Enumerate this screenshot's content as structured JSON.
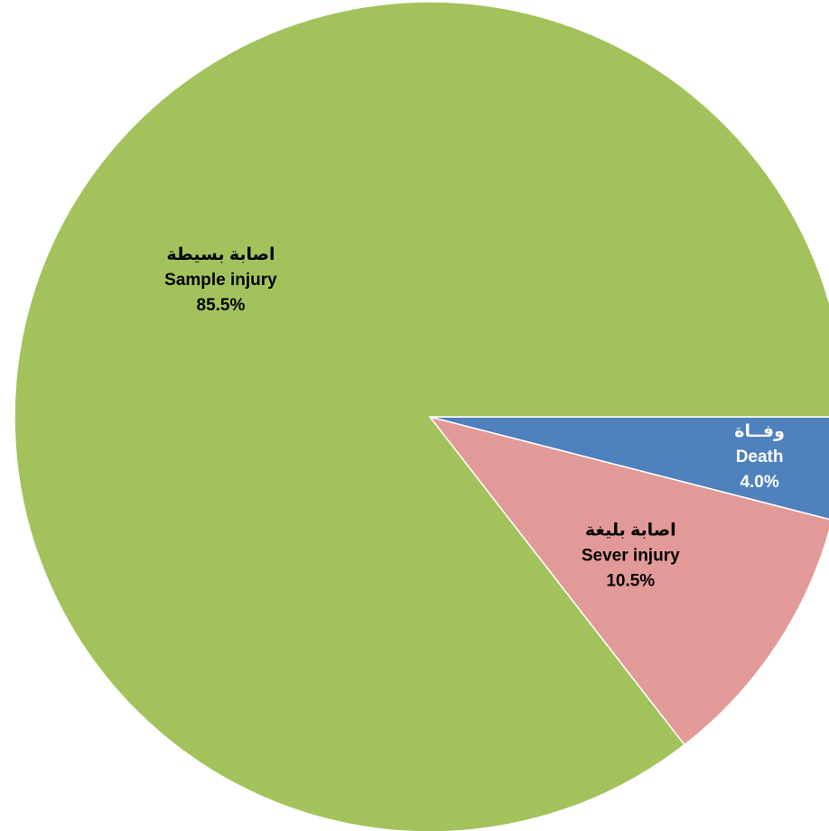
{
  "chart_data": {
    "type": "pie",
    "categories": [
      "Death",
      "Sever injury",
      "Sample injury"
    ],
    "values": [
      4.0,
      10.5,
      85.5
    ],
    "slices": [
      {
        "name_ar": "وفــاة",
        "name_en": "Death",
        "value": 4.0,
        "value_label": "4.0%",
        "color": "#4f81bd",
        "text_color": "#ffffff"
      },
      {
        "name_ar": "اصابة بليغة",
        "name_en": "Sever injury",
        "value": 10.5,
        "value_label": "10.5%",
        "color": "#e29a99",
        "text_color": "#000000"
      },
      {
        "name_ar": "اصابة بسيطة",
        "name_en": "Sample injury",
        "value": 85.5,
        "value_label": "85.5%",
        "color": "#a2c35c",
        "text_color": "#000000"
      }
    ],
    "start_angle": "3 o'clock",
    "direction": "clockwise",
    "legend": "none"
  }
}
